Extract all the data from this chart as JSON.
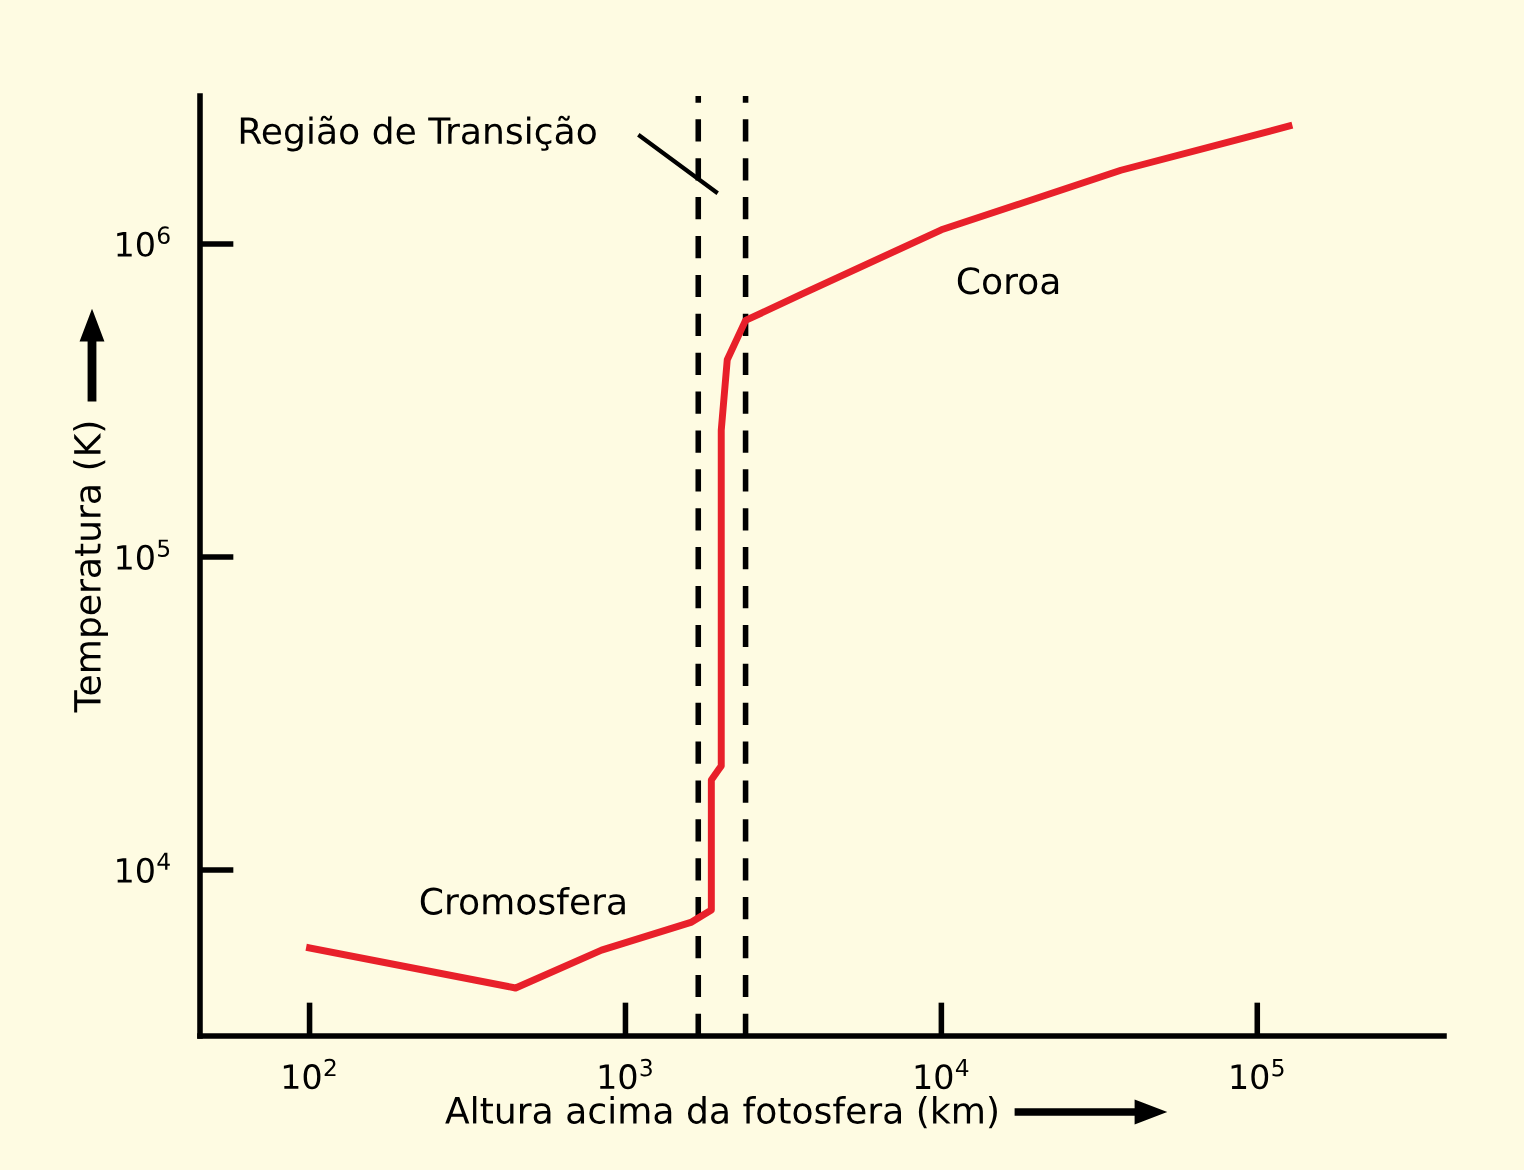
{
  "chart_data": {
    "type": "line",
    "xlabel": "Altura acima da fotosfera (km)",
    "ylabel": "Temperatura (K)",
    "log": "xy",
    "grid": false,
    "marker": "none",
    "line_style": "solid",
    "series": [
      {
        "color": "#e8202a",
        "x": [
          100,
          449,
          840,
          1620,
          1870,
          1870,
          1970,
          2010,
          2010,
          2100,
          2400,
          3600,
          10000,
          37000,
          126000
        ],
        "values": [
          5640,
          4200,
          5550,
          6820,
          7450,
          19400,
          20900,
          21500,
          254000,
          427000,
          570000,
          690000,
          1110000,
          1720000,
          2380000
        ]
      }
    ],
    "xlim": [
      45,
      390000
    ],
    "ylim": [
      2950,
      2970000
    ],
    "xticks": [
      {
        "value": 100,
        "label": "10$^{2}$"
      },
      {
        "value": 1000,
        "label": "10$^{3}$"
      },
      {
        "value": 10000,
        "label": "10$^{4}$"
      },
      {
        "value": 100000,
        "label": "10$^{5}$"
      }
    ],
    "yticks": [
      {
        "value": 10000,
        "label": "10$^{4}$"
      },
      {
        "value": 100000,
        "label": "10$^{5}$"
      },
      {
        "value": 1000000,
        "label": "10$^{6}$"
      }
    ],
    "ref_lines": [
      {
        "axis": "x",
        "value": 1700,
        "color": "#000000",
        "line_style": "dashed"
      },
      {
        "axis": "x",
        "value": 2400,
        "color": "#000000",
        "line_style": "dashed"
      }
    ],
    "annotations": [
      "Região de Transição",
      "Cromosfera",
      "Coroa"
    ]
  }
}
